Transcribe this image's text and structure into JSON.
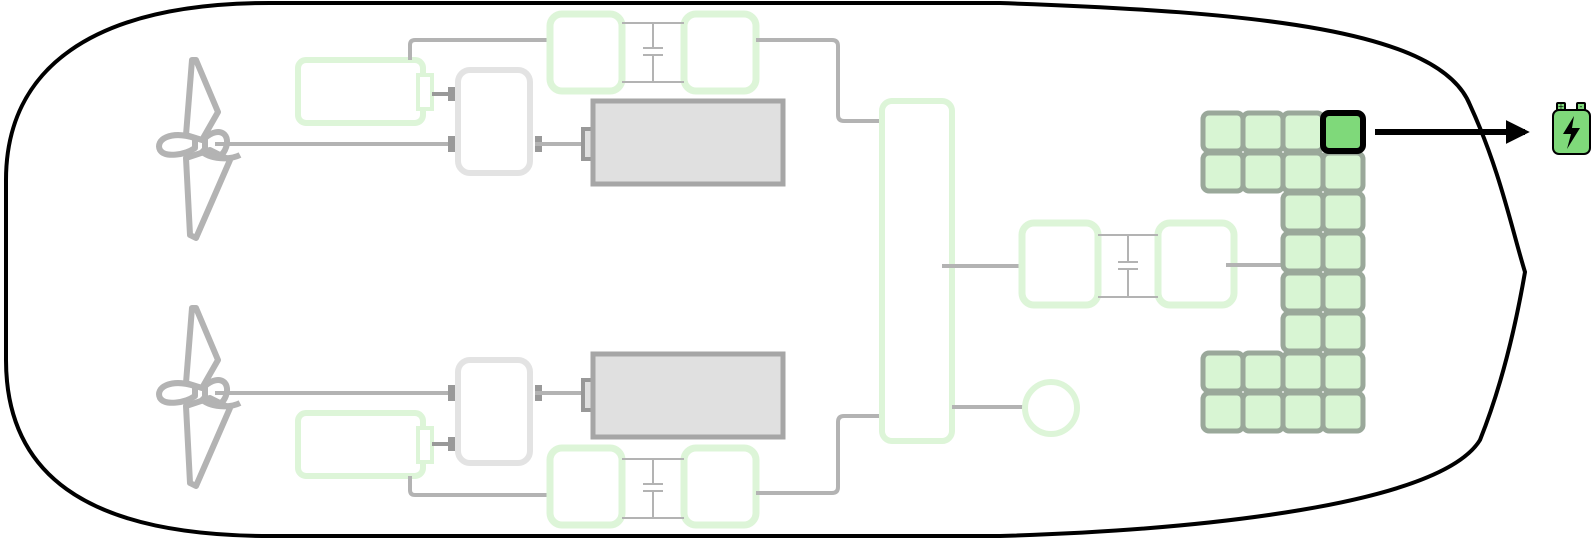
{
  "diagram": {
    "description_free": true,
    "highlighted_component": "battery-cell",
    "colors": {
      "hull_stroke": "#000000",
      "inactive_gray": "#b3b3b3",
      "dark_gray": "#999999",
      "motor_fill": "#e0e0e0",
      "box_light": "#e6e6e6",
      "green_fill": "#d8f5d3",
      "green_stroke": "#ddf5d8",
      "cell_stroke": "#9aa89a",
      "active_green": "#7fd97a",
      "active_border": "#000000",
      "icon_fill": "#7fd97a"
    },
    "battery_pack": {
      "rows": 8,
      "highlighted": "row-1-col-4"
    },
    "icons": {
      "output": "battery-charge-icon",
      "propellers": "propeller-icon"
    }
  }
}
